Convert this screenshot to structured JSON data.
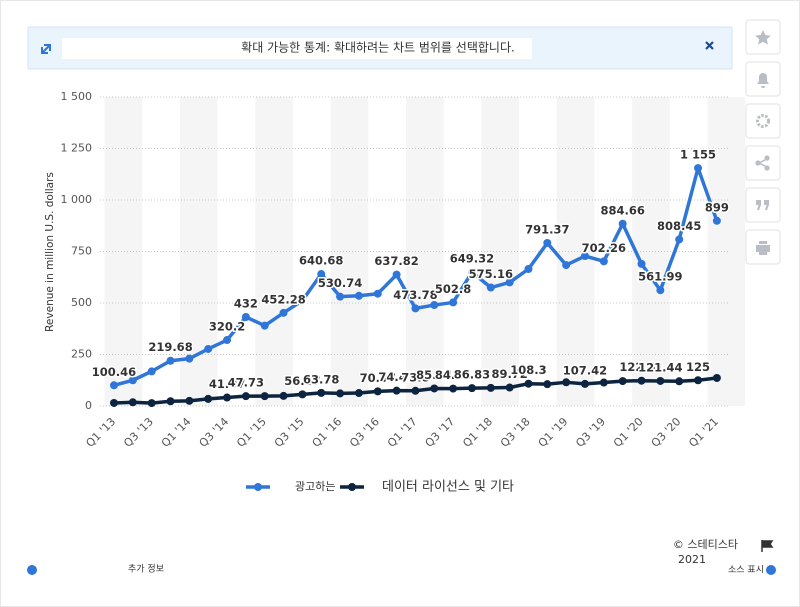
{
  "banner": {
    "text": "확대 가능한 통계: 확대하려는 차트 범위를 선택합니다."
  },
  "footer": {
    "copyright": "© 스테티스타",
    "year": "2021",
    "more_info": "추가 정보",
    "show_source": "소스 표시"
  },
  "chart_data": {
    "type": "line",
    "y_label": "Revenue in million U.S. dollars",
    "categories": [
      "Q1 '13",
      null,
      "Q3 '13",
      null,
      "Q1 '14",
      null,
      "Q3 '14",
      null,
      "Q1 '15",
      null,
      "Q3 '15",
      null,
      "Q1 '16",
      null,
      "Q3 '16",
      null,
      "Q1 '17",
      null,
      "Q3 '17",
      null,
      "Q1 '18",
      null,
      "Q3 '18",
      null,
      "Q1 '19",
      null,
      "Q3 '19",
      null,
      "Q1 '20",
      null,
      "Q3 '20",
      null,
      "Q1 '21"
    ],
    "ylim": [
      0,
      1500
    ],
    "yticks": [
      0,
      250,
      500,
      750,
      {
        "value": 1000,
        "label": "1 000"
      },
      {
        "value": 1250,
        "label": "1 250"
      },
      {
        "value": 1500,
        "label": "1 500"
      }
    ],
    "grid": true,
    "legend": "bottom",
    "series": [
      {
        "name": "광고하는",
        "color": "#2f76d8",
        "values": [
          100.46,
          125,
          168,
          219.68,
          230,
          277,
          320.2,
          432,
          390,
          452.28,
          512,
          640.68,
          530.74,
          535,
          545,
          637.82,
          473.78,
          490,
          502.8,
          649.32,
          575.16,
          600,
          665,
          791.37,
          684,
          728,
          702.26,
          884.66,
          690,
          561.99,
          808.45,
          1155,
          899
        ],
        "value_labels": [
          "100.46",
          null,
          null,
          "219.68",
          null,
          null,
          "320.2",
          "432",
          null,
          "452.28",
          null,
          "640.68",
          "530.74",
          null,
          null,
          "637.82",
          "473.78",
          null,
          "502.8",
          "649.32",
          "575.16",
          null,
          null,
          "791.37",
          null,
          null,
          "702.26",
          "884.66",
          null,
          "561.99",
          "808.45",
          "1 155",
          "899"
        ]
      },
      {
        "name": "데이터 라이선스 및 기타",
        "color": "#0d2440",
        "values": [
          14.8,
          18.0,
          14.1,
          23.0,
          25.0,
          34.6,
          41.07,
          47.73,
          48.0,
          49.0,
          56.37,
          63.78,
          61.0,
          63.0,
          70.97,
          74.47,
          73.8,
          85.14,
          84.44,
          86.83,
          88.0,
          89.72,
          108.3,
          106.0,
          115.0,
          107.42,
          114.0,
          121.0,
          122.81,
          121.44,
          120.0,
          125.0,
          136.0
        ],
        "value_labels": [
          null,
          null,
          null,
          null,
          null,
          null,
          "41.07",
          "47.73",
          null,
          null,
          "56.37",
          "63.78",
          null,
          null,
          "70.97",
          "74.47",
          "73.8",
          "85.14",
          "84.44",
          "86.83",
          null,
          "89.72",
          "108.3",
          null,
          null,
          "107.42",
          null,
          null,
          "122.81",
          "121.44",
          null,
          "125",
          null
        ]
      }
    ]
  }
}
